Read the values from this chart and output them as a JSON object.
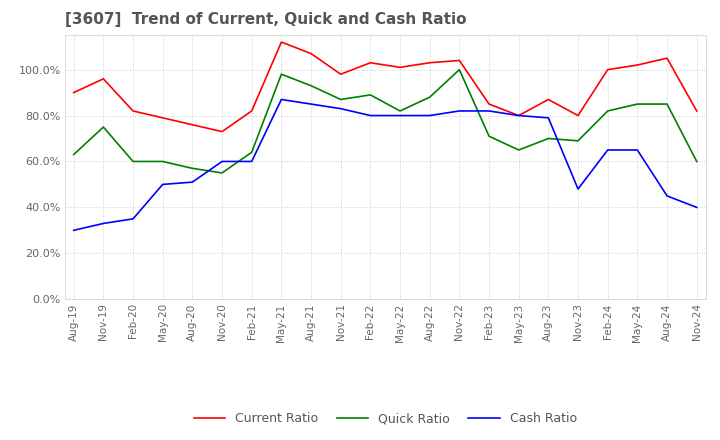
{
  "title": "[3607]  Trend of Current, Quick and Cash Ratio",
  "title_color": "#555555",
  "background_color": "#ffffff",
  "grid_color": "#cccccc",
  "x_labels": [
    "Aug-19",
    "Nov-19",
    "Feb-20",
    "May-20",
    "Aug-20",
    "Nov-20",
    "Feb-21",
    "May-21",
    "Aug-21",
    "Nov-21",
    "Feb-22",
    "May-22",
    "Aug-22",
    "Nov-22",
    "Feb-23",
    "May-23",
    "Aug-23",
    "Nov-23",
    "Feb-24",
    "May-24",
    "Aug-24",
    "Nov-24"
  ],
  "current_ratio": [
    90,
    96,
    82,
    79,
    76,
    73,
    82,
    112,
    107,
    98,
    103,
    101,
    103,
    104,
    85,
    80,
    87,
    80,
    100,
    102,
    105,
    82
  ],
  "quick_ratio": [
    63,
    75,
    60,
    60,
    57,
    55,
    64,
    98,
    93,
    87,
    89,
    82,
    88,
    100,
    71,
    65,
    70,
    69,
    82,
    85,
    85,
    60
  ],
  "cash_ratio": [
    30,
    33,
    35,
    50,
    51,
    60,
    60,
    87,
    85,
    83,
    80,
    80,
    80,
    82,
    82,
    80,
    79,
    48,
    65,
    65,
    45,
    40
  ],
  "current_color": "#ff0000",
  "quick_color": "#008000",
  "cash_color": "#0000ff",
  "ylim": [
    0,
    115
  ],
  "yticks": [
    0,
    20,
    40,
    60,
    80,
    100
  ],
  "ytick_labels": [
    "0.0%",
    "20.0%",
    "40.0%",
    "60.0%",
    "80.0%",
    "100.0%"
  ],
  "legend_labels": [
    "Current Ratio",
    "Quick Ratio",
    "Cash Ratio"
  ]
}
